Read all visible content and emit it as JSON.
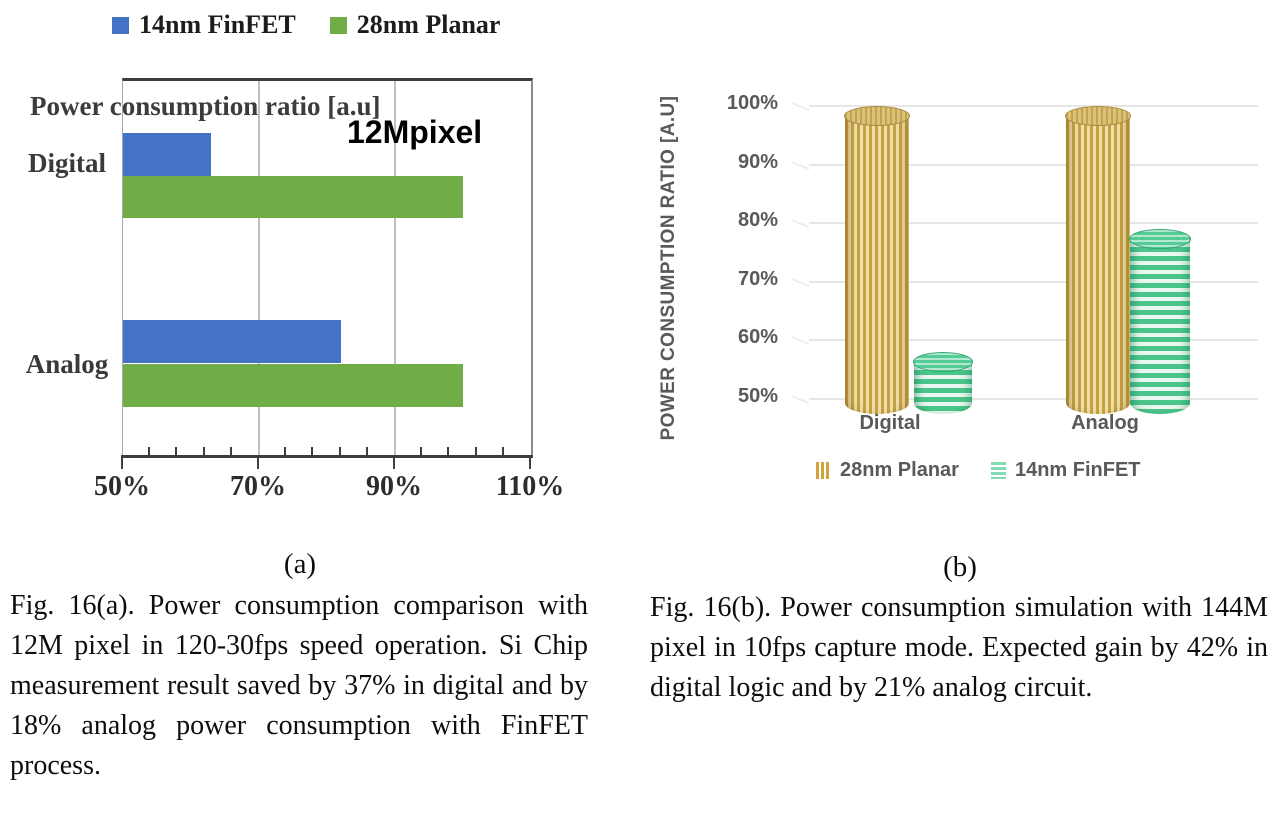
{
  "panel_a": {
    "panel_label": "(a)",
    "caption": "Fig. 16(a). Power consumption comparison with 12M pixel in 120-30fps speed operation. Si Chip measurement result saved by 37% in digital and by 18% analog power consumption with FinFET process."
  },
  "panel_b": {
    "panel_label": "(b)",
    "caption": "Fig. 16(b). Power consumption simulation with 144M pixel in 10fps capture mode. Expected gain by 42% in digital logic and by 21% analog circuit."
  },
  "chart_data": [
    {
      "type": "bar",
      "orientation": "horizontal",
      "title": "Power consumption ratio [a.u]",
      "annotation": "12Mpixel",
      "categories": [
        "Digital",
        "Analog"
      ],
      "series": [
        {
          "name": "14nm FinFET",
          "color": "#4472c4",
          "values": [
            63,
            82
          ]
        },
        {
          "name": "28nm Planar",
          "color": "#70ad47",
          "values": [
            100,
            100
          ]
        }
      ],
      "xlim": [
        50,
        110
      ],
      "x_ticks": [
        50,
        70,
        90,
        110
      ],
      "x_tick_labels": [
        "50%",
        "70%",
        "90%",
        "110%"
      ],
      "minor_tick_step": 4,
      "grid": true,
      "legend_position": "top"
    },
    {
      "type": "bar",
      "style": "3d-cylinder",
      "categories": [
        "Digital",
        "Analog"
      ],
      "series": [
        {
          "name": "28nm Planar",
          "color": "#c7a142",
          "values": [
            100,
            100
          ]
        },
        {
          "name": "14nm FinFET",
          "color": "#4bc68b",
          "values": [
            58,
            79
          ]
        }
      ],
      "ylabel": "POWER CONSUMPTION RATIO [A.U]",
      "ylim": [
        50,
        100
      ],
      "y_ticks": [
        100,
        90,
        80,
        70,
        60,
        50
      ],
      "y_tick_labels": [
        "100%",
        "90%",
        "80%",
        "70%",
        "60%",
        "50%"
      ],
      "grid": true,
      "legend_position": "bottom"
    }
  ]
}
